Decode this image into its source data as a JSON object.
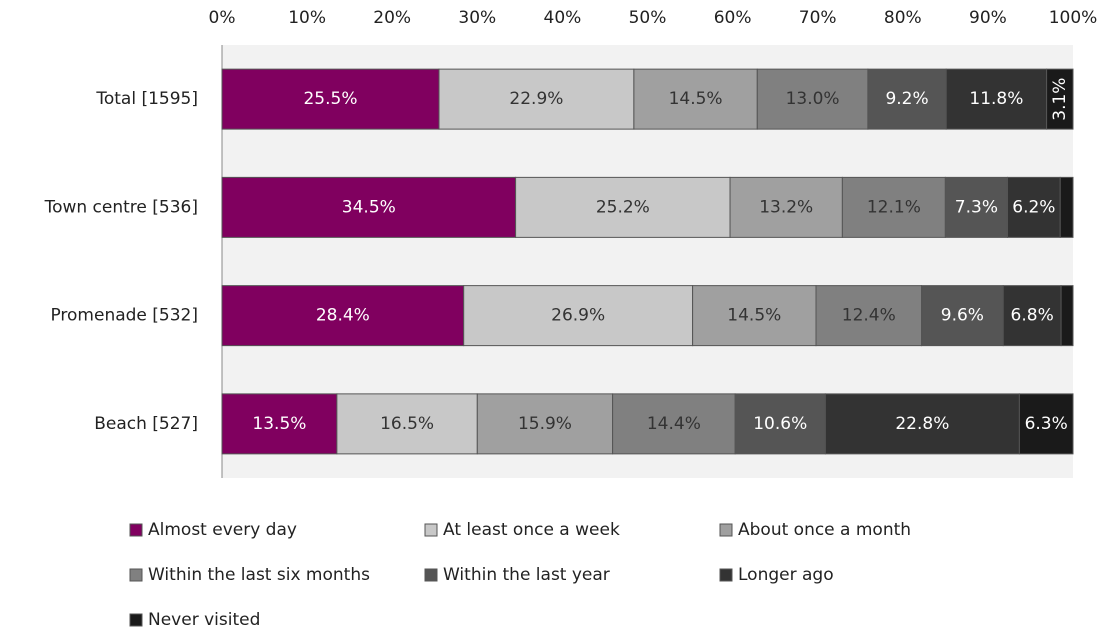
{
  "chart_data": {
    "type": "stacked-bar-horizontal",
    "categories": [
      "Total [1595]",
      "Town centre [536]",
      "Promenade [532]",
      "Beach [527]"
    ],
    "series": [
      {
        "name": "Almost every day",
        "color": "#80005f",
        "values": [
          25.5,
          34.5,
          28.4,
          13.5
        ],
        "value_labels": [
          "25.5%",
          "34.5%",
          "28.4%",
          "13.5%"
        ]
      },
      {
        "name": "At least once a week",
        "color": "#c8c8c8",
        "values": [
          22.9,
          25.2,
          26.9,
          16.5
        ],
        "value_labels": [
          "22.9%",
          "25.2%",
          "26.9%",
          "16.5%"
        ]
      },
      {
        "name": "About once a month",
        "color": "#a0a0a0",
        "values": [
          14.5,
          13.2,
          14.5,
          15.9
        ],
        "value_labels": [
          "14.5%",
          "13.2%",
          "14.5%",
          "15.9%"
        ]
      },
      {
        "name": "Within the last six months",
        "color": "#808080",
        "values": [
          13.0,
          12.1,
          12.4,
          14.4
        ],
        "value_labels": [
          "13.0%",
          "12.1%",
          "12.4%",
          "14.4%"
        ]
      },
      {
        "name": "Within the last year",
        "color": "#555555",
        "values": [
          9.2,
          7.3,
          9.6,
          10.6
        ],
        "value_labels": [
          "9.2%",
          "7.3%",
          "9.6%",
          "10.6%"
        ]
      },
      {
        "name": "Longer ago",
        "color": "#333333",
        "values": [
          11.8,
          6.2,
          6.8,
          22.8
        ],
        "value_labels": [
          "11.8%",
          "6.2%",
          "6.8%",
          "22.8%"
        ]
      },
      {
        "name": "Never visited",
        "color": "#1a1a1a",
        "values": [
          3.1,
          1.5,
          1.4,
          6.3
        ],
        "value_labels": [
          "3.1%",
          null,
          null,
          "6.3%"
        ]
      }
    ],
    "xlim": [
      0,
      100
    ],
    "xticks": [
      {
        "value": 0,
        "label": "0%"
      },
      {
        "value": 10,
        "label": "10%"
      },
      {
        "value": 20,
        "label": "20%"
      },
      {
        "value": 30,
        "label": "30%"
      },
      {
        "value": 40,
        "label": "40%"
      },
      {
        "value": 50,
        "label": "50%"
      },
      {
        "value": 60,
        "label": "60%"
      },
      {
        "value": 70,
        "label": "70%"
      },
      {
        "value": 80,
        "label": "80%"
      },
      {
        "value": 90,
        "label": "90%"
      },
      {
        "value": 100,
        "label": "100%"
      }
    ],
    "legend": "bottom"
  }
}
